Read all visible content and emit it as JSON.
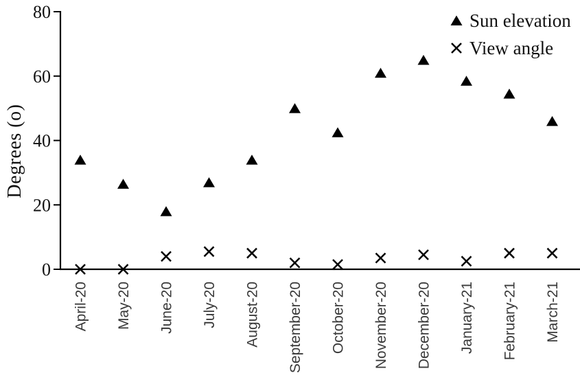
{
  "chart_data": {
    "type": "scatter",
    "title": "",
    "xlabel": "",
    "ylabel": "Degrees (o)",
    "ylim": [
      0,
      80
    ],
    "yticks": [
      0,
      20,
      40,
      60,
      80
    ],
    "grid": false,
    "legend_position": "top-right",
    "categories": [
      "April-20",
      "May-20",
      "June-20",
      "July-20",
      "August-20",
      "September-20",
      "October-20",
      "November-20",
      "December-20",
      "January-21",
      "February-21",
      "March-21"
    ],
    "series": [
      {
        "name": "Sun elevation",
        "marker": "triangle",
        "color": "#000000",
        "values": [
          34,
          26.5,
          18,
          27,
          34,
          50,
          42.5,
          61,
          65,
          58.5,
          54.5,
          46
        ]
      },
      {
        "name": "View angle",
        "marker": "x",
        "color": "#000000",
        "values": [
          0,
          0,
          4,
          5.5,
          5,
          2,
          1.5,
          3.5,
          4.5,
          2.5,
          5,
          5
        ]
      }
    ]
  },
  "colors": {
    "axis": "#000000",
    "marker": "#000000",
    "y_tick_label": "#111111",
    "x_tick_label": "#3a3a3a"
  }
}
